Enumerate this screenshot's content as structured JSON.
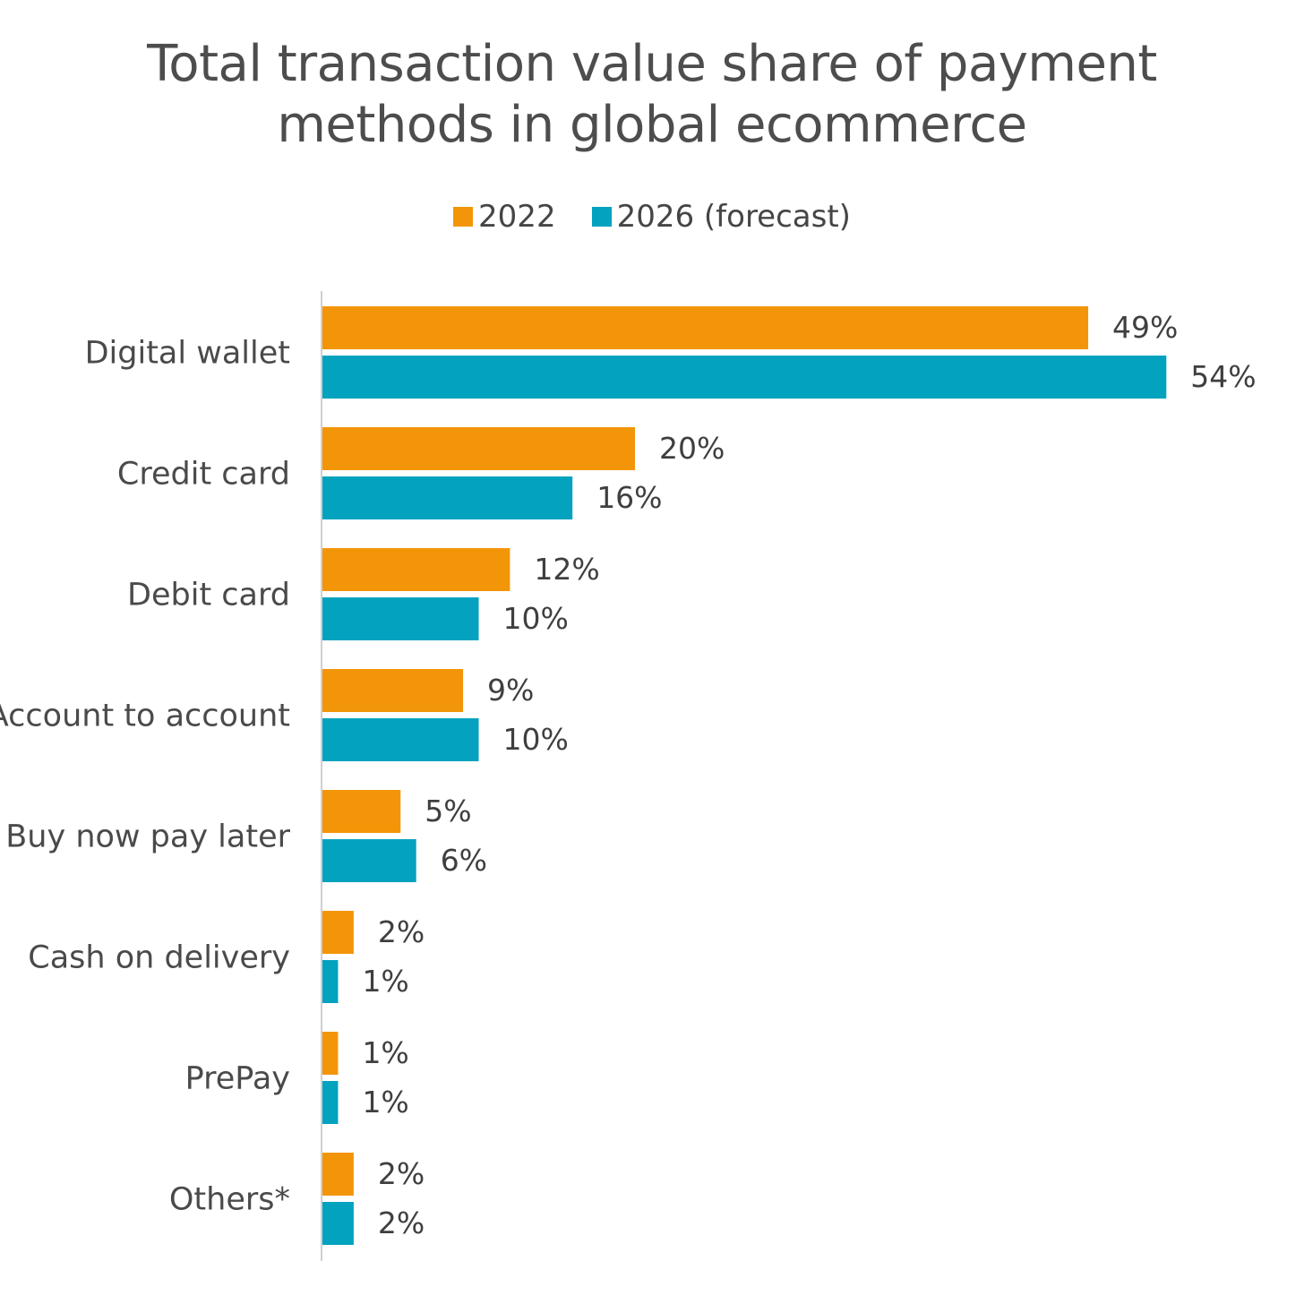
{
  "chart_data": {
    "type": "bar",
    "orientation": "horizontal",
    "title": "Total transaction value share of payment methods in global ecommerce",
    "title_lines": [
      "Total transaction value share of payment",
      "methods in global ecommerce"
    ],
    "categories": [
      "Digital wallet",
      "Credit card",
      "Debit card",
      "Account to account",
      "Buy now pay later",
      "Cash on delivery",
      "PrePay",
      "Others*"
    ],
    "series": [
      {
        "name": "2022",
        "color": "#f39508",
        "values": [
          49,
          20,
          12,
          9,
          5,
          2,
          1,
          2
        ],
        "labels": [
          "49%",
          "20%",
          "12%",
          "9%",
          "5%",
          "2%",
          "1%",
          "2%"
        ]
      },
      {
        "name": "2026 (forecast)",
        "color": "#03a2bf",
        "values": [
          54,
          16,
          10,
          10,
          6,
          1,
          1,
          2
        ],
        "labels": [
          "54%",
          "16%",
          "10%",
          "10%",
          "6%",
          "1%",
          "1%",
          "2%"
        ]
      }
    ],
    "xlabel": "",
    "ylabel": "",
    "unit": "%",
    "grid": false,
    "legend_position": "top-center"
  }
}
